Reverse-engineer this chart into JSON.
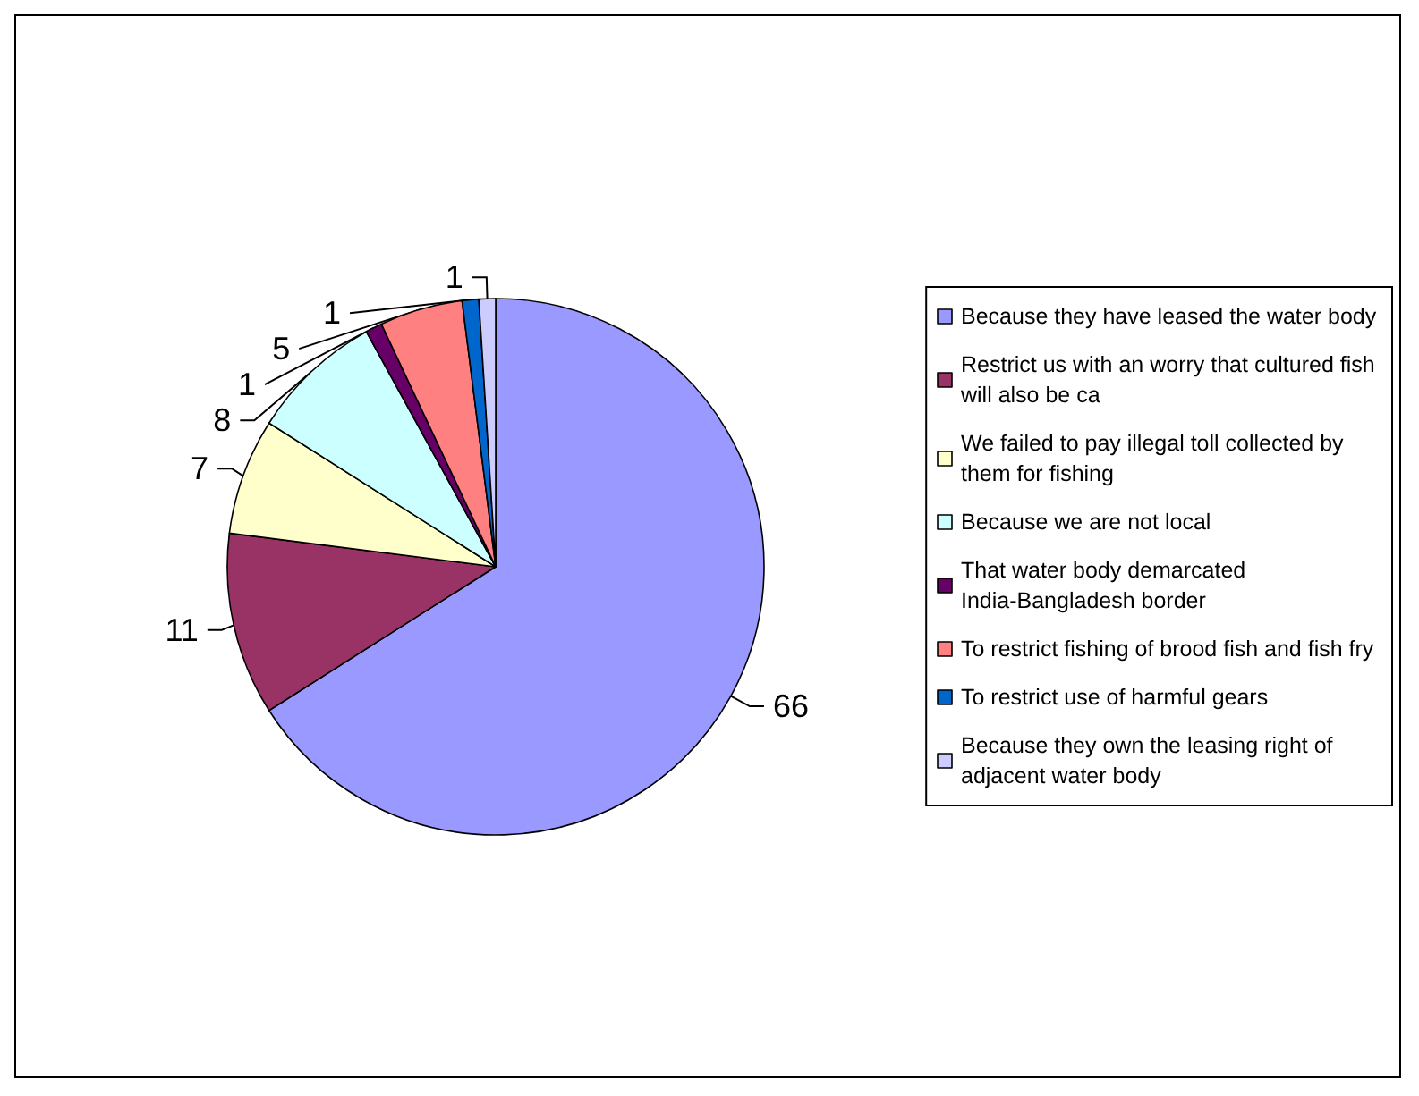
{
  "chart_data": {
    "type": "pie",
    "categories": [
      "Because they have leased the water body",
      "Restrict us with an worry that cultured fish will also be ca",
      "We failed to pay illegal toll collected by them for fishing",
      "Because we are not local",
      "That water body demarcated India-Bangladesh border",
      "To restrict fishing of brood fish and fish fry",
      "To restrict use of harmful gears",
      "Because they own the leasing right of adjacent water body"
    ],
    "values": [
      66,
      11,
      7,
      8,
      1,
      5,
      1,
      1
    ],
    "colors": [
      "#9999ff",
      "#993366",
      "#ffffcc",
      "#ccffff",
      "#660066",
      "#ff8080",
      "#0066cc",
      "#ccccff"
    ],
    "data_labels": true,
    "legend": "right"
  }
}
